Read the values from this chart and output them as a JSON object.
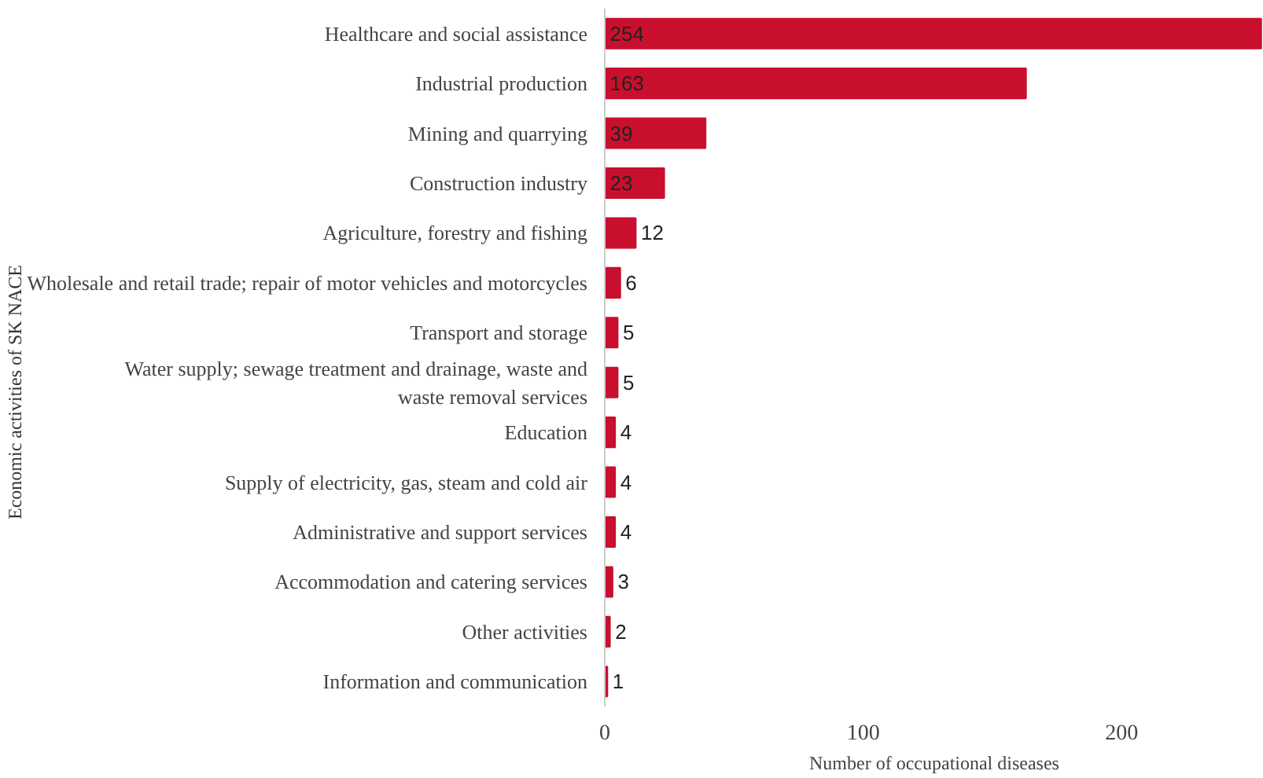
{
  "chart_data": {
    "type": "bar",
    "orientation": "horizontal",
    "xlabel": "Number of occupational diseases",
    "annotations": [
      "Economic activities of SK NACE"
    ],
    "categories": [
      "Healthcare and social assistance",
      "Industrial production",
      "Mining and quarrying",
      "Construction industry",
      "Agriculture, forestry and fishing",
      "Wholesale and retail trade; repair of motor vehicles and motorcycles",
      "Transport and storage",
      "Water supply; sewage treatment and drainage, waste and\nwaste removal services",
      "Education",
      "Supply of electricity, gas, steam and cold air",
      "Administrative and support services",
      "Accommodation and catering services",
      "Other activities",
      "Information and communication"
    ],
    "values": [
      254,
      163,
      39,
      23,
      12,
      6,
      5,
      5,
      4,
      4,
      4,
      3,
      2,
      1
    ],
    "color": "#c8102e",
    "data_labels": true,
    "grid": false,
    "xlim": [
      0,
      255
    ],
    "xticks": [
      0,
      100,
      200
    ]
  }
}
